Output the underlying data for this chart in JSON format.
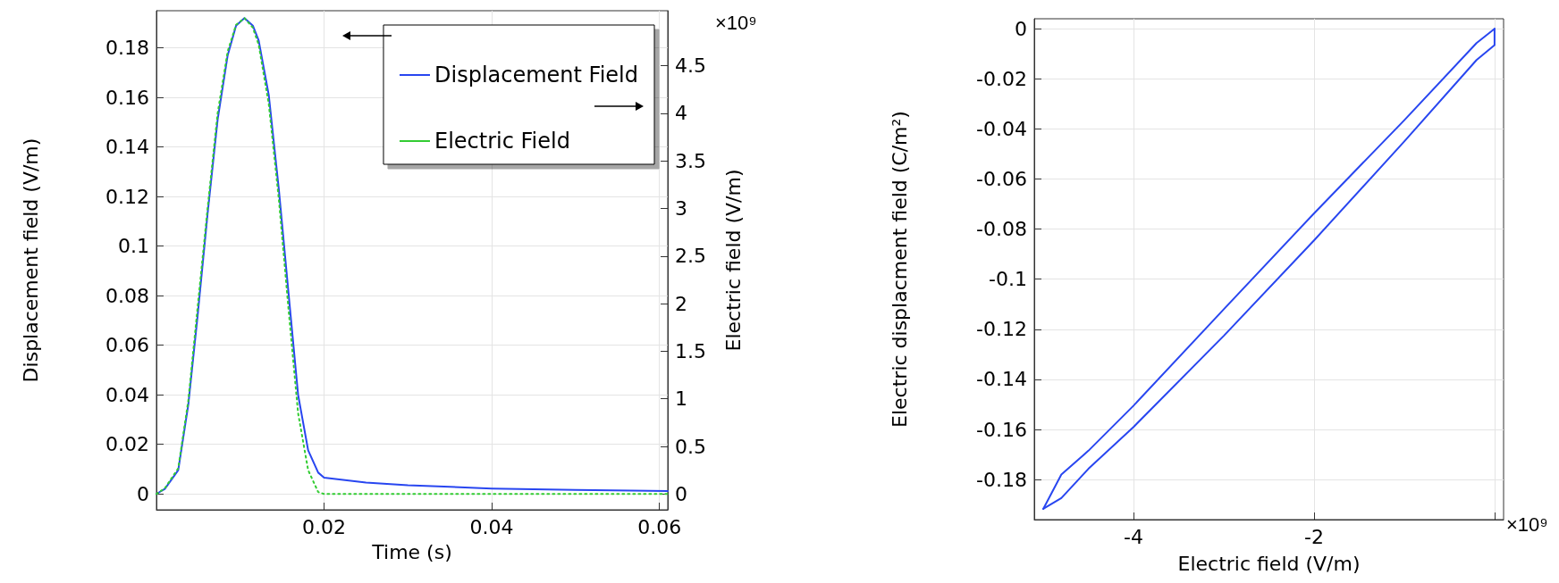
{
  "chart_data": [
    {
      "type": "line",
      "xlabel": "Time (s)",
      "ylabel": "Displacement field (V/m)",
      "y2label": "Electric field (V/m)",
      "xlim": [
        0,
        0.061
      ],
      "xticks": [
        0.02,
        0.04,
        0.06
      ],
      "ylim": [
        -0.0064,
        0.195
      ],
      "yticks": [
        0,
        0.02,
        0.04,
        0.06,
        0.08,
        0.1,
        0.12,
        0.14,
        0.16,
        0.18
      ],
      "y2lim": [
        -0.166,
        5.078
      ],
      "y2ticks": [
        0,
        0.5,
        1,
        1.5,
        2,
        2.5,
        3,
        3.5,
        4,
        4.5
      ],
      "grid": true,
      "legend": "top right",
      "marker": "none",
      "annotations": [
        "×10⁹"
      ],
      "series": [
        {
          "name": "Displacement Field",
          "color": "#2846f0",
          "line_style": "solid",
          "x": [
            0,
            0.001,
            0.0026,
            0.0038,
            0.0049,
            0.0061,
            0.0073,
            0.0085,
            0.0095,
            0.0105,
            0.0115,
            0.0122,
            0.0134,
            0.0146,
            0.0158,
            0.0169,
            0.0181,
            0.0193,
            0.02,
            0.025,
            0.03,
            0.04,
            0.05,
            0.061
          ],
          "values": [
            0,
            0.002,
            0.0096,
            0.036,
            0.0715,
            0.113,
            0.151,
            0.177,
            0.189,
            0.192,
            0.189,
            0.183,
            0.161,
            0.123,
            0.0795,
            0.04,
            0.0176,
            0.0086,
            0.0066,
            0.0046,
            0.0035,
            0.0022,
            0.0016,
            0.0012
          ]
        },
        {
          "name": "Electric Field",
          "color": "#33cc33",
          "line_style": "dotted",
          "axis": "y2",
          "x": [
            0,
            0.001,
            0.0026,
            0.0038,
            0.0049,
            0.0061,
            0.0073,
            0.0085,
            0.0095,
            0.0105,
            0.0115,
            0.0122,
            0.0134,
            0.0146,
            0.0158,
            0.0169,
            0.0181,
            0.0193,
            0.02,
            0.061
          ],
          "values": [
            0,
            0.06,
            0.27,
            0.98,
            1.95,
            3.0,
            4.0,
            4.65,
            4.93,
            5.0,
            4.9,
            4.72,
            4.1,
            3.1,
            1.9,
            0.85,
            0.25,
            0.02,
            0,
            0
          ]
        }
      ]
    },
    {
      "type": "line",
      "xlabel": "Electric field (V/m)",
      "ylabel": "Electric displacment field (C/m²)",
      "xlim": [
        -5.1,
        0.1
      ],
      "xticks": [
        -4,
        -2,
        {
          "value": 0,
          "label": null
        }
      ],
      "ylim": [
        -0.196,
        0.004
      ],
      "yticks": [
        -0.18,
        -0.16,
        -0.14,
        -0.12,
        -0.1,
        -0.08,
        -0.06,
        -0.04,
        -0.02,
        0
      ],
      "grid": true,
      "marker": "none",
      "annotations": [
        "×10⁹"
      ],
      "series": [
        {
          "color": "#2846f0",
          "line_style": "solid",
          "x": [
            -5.0,
            -4.8,
            -4.5,
            -4,
            -3,
            -2,
            -1,
            -0.2,
            0
          ],
          "values": [
            -0.1917,
            -0.178,
            -0.1685,
            -0.1505,
            -0.112,
            -0.0737,
            -0.0365,
            -0.0057,
            0
          ]
        },
        {
          "color": "#2846f0",
          "line_style": "solid",
          "x": [
            -5.0,
            -4.8,
            -4.5,
            -4,
            -3,
            -2,
            -1,
            -0.2,
            0,
            0
          ],
          "values": [
            -0.1917,
            -0.1874,
            -0.1757,
            -0.159,
            -0.1226,
            -0.0845,
            -0.045,
            -0.0125,
            -0.0065,
            0
          ]
        }
      ]
    }
  ]
}
